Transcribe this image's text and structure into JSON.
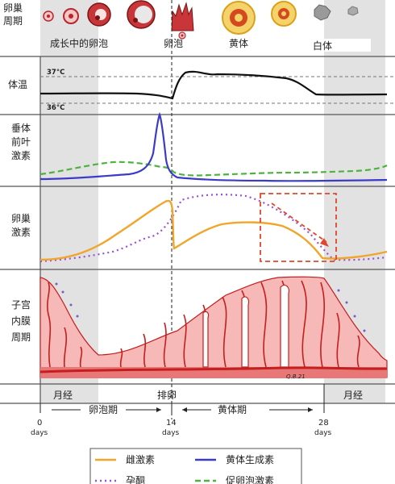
{
  "rows": {
    "ovary_cycle": "卵巢\n周期",
    "temperature": "体温",
    "pituitary": "垂体\n前叶\n激素",
    "ovarian_hormones": "卵巢\n激素",
    "endometrium": "子宫\n内膜\n周期"
  },
  "ovary_stages": {
    "growing_follicle": "成长中的卵泡",
    "follicle": "卵泡",
    "corpus_luteum": "黄体",
    "corpus_albicans": "白体"
  },
  "temperature_ticks": {
    "high": "37°C",
    "low": "36°C"
  },
  "phases": {
    "menses_start": "月经",
    "follicular": "卵泡期",
    "ovulation": "排卵",
    "luteal": "黄体期",
    "menses_end": "月经"
  },
  "day_ticks": [
    {
      "value": "0",
      "unit": "days"
    },
    {
      "value": "14",
      "unit": "days"
    },
    {
      "value": "28",
      "unit": "days"
    }
  ],
  "artist_signature": "Q.B.21",
  "legend": {
    "items": [
      {
        "label": "雌激素",
        "color": "#f0a62b",
        "style": "solid"
      },
      {
        "label": "黄体生成素",
        "color": "#3b3bc8",
        "style": "solid"
      },
      {
        "label": "孕酮",
        "color": "#9a4fd6",
        "style": "dotted"
      },
      {
        "label": "促卵泡激素",
        "color": "#4db33d",
        "style": "dashed"
      }
    ]
  },
  "colors": {
    "menses_shade": "#e2e2e2",
    "endometrium_fill": "#f7b8b8",
    "endometrium_line": "#c41e1e",
    "highlight_box": "#e0472b"
  }
}
